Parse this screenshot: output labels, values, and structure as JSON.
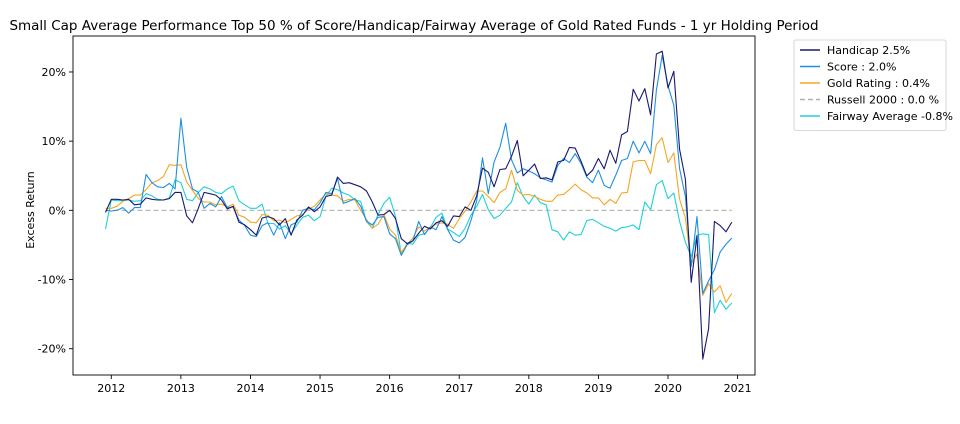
{
  "chart_data": {
    "type": "line",
    "title": "Small Cap Average Performance Top 50 % of Score/Handicap/Fairway Average of Gold Rated Funds - 1 yr Holding Period",
    "xlabel": "",
    "ylabel": "Excess Return",
    "xlim": [
      2011.45,
      2021.25
    ],
    "ylim": [
      -0.238,
      0.252
    ],
    "x_ticks": [
      2012,
      2013,
      2014,
      2015,
      2016,
      2017,
      2018,
      2019,
      2020,
      2021
    ],
    "x_tick_labels": [
      "2012",
      "2013",
      "2014",
      "2015",
      "2016",
      "2017",
      "2018",
      "2019",
      "2020",
      "2021"
    ],
    "y_ticks": [
      -0.2,
      -0.1,
      0.0,
      0.1,
      0.2
    ],
    "y_tick_labels": [
      "-20%",
      "-10%",
      "0%",
      "10%",
      "20%"
    ],
    "grid": false,
    "legend_position": "outside-right",
    "x_start": 2011.917,
    "x_step": 0.0833333,
    "series": [
      {
        "name": "Handicap 2.5%",
        "color": "#191970",
        "dash": "solid",
        "values": [
          -0.003,
          0.016,
          0.016,
          0.015,
          0.016,
          0.008,
          0.009,
          0.018,
          0.016,
          0.015,
          0.015,
          0.017,
          0.026,
          0.026,
          -0.008,
          -0.018,
          0.003,
          0.026,
          0.024,
          0.022,
          0.015,
          0.002,
          0.006,
          -0.017,
          -0.021,
          -0.028,
          -0.036,
          -0.011,
          -0.009,
          -0.012,
          -0.021,
          -0.012,
          -0.036,
          -0.014,
          -0.007,
          0.005,
          -0.002,
          0.005,
          0.02,
          0.022,
          0.048,
          0.039,
          0.04,
          0.037,
          0.034,
          0.028,
          0.012,
          -0.007,
          -0.006,
          0.0,
          -0.012,
          -0.041,
          -0.048,
          -0.044,
          -0.033,
          -0.023,
          -0.027,
          -0.018,
          -0.015,
          -0.023,
          -0.008,
          -0.009,
          0.005,
          0.0,
          0.021,
          0.061,
          0.055,
          0.034,
          0.059,
          0.06,
          0.078,
          0.101,
          0.05,
          0.058,
          0.067,
          0.046,
          0.047,
          0.044,
          0.07,
          0.072,
          0.091,
          0.09,
          0.071,
          0.05,
          0.058,
          0.075,
          0.06,
          0.087,
          0.068,
          0.109,
          0.114,
          0.175,
          0.158,
          0.176,
          0.138,
          0.226,
          0.23,
          0.177,
          0.201,
          0.088,
          0.045,
          -0.104,
          -0.037,
          -0.215,
          -0.171,
          -0.016,
          -0.022,
          -0.031,
          -0.017
        ]
      },
      {
        "name": "Score : 2.0%",
        "color": "#1f8fe0",
        "dash": "solid",
        "values": [
          0.0,
          -0.001,
          0.0,
          0.004,
          -0.004,
          0.004,
          0.004,
          0.052,
          0.04,
          0.034,
          0.033,
          0.039,
          0.031,
          0.133,
          0.062,
          0.031,
          0.026,
          0.003,
          0.01,
          0.005,
          0.02,
          0.004,
          0.005,
          -0.014,
          -0.022,
          -0.036,
          -0.038,
          -0.022,
          -0.018,
          -0.036,
          -0.018,
          -0.041,
          -0.021,
          -0.017,
          0.0,
          0.003,
          0.001,
          0.011,
          0.026,
          0.024,
          0.046,
          0.01,
          0.013,
          0.017,
          0.006,
          -0.016,
          -0.021,
          -0.01,
          -0.009,
          -0.034,
          -0.041,
          -0.065,
          -0.05,
          -0.044,
          -0.016,
          -0.035,
          -0.024,
          -0.028,
          -0.009,
          -0.028,
          -0.043,
          -0.047,
          -0.039,
          -0.015,
          0.014,
          0.076,
          0.024,
          0.07,
          0.091,
          0.126,
          0.073,
          0.054,
          0.06,
          0.057,
          0.053,
          0.047,
          0.044,
          0.041,
          0.065,
          0.075,
          0.069,
          0.082,
          0.068,
          0.048,
          0.04,
          0.058,
          0.036,
          0.032,
          0.051,
          0.072,
          0.075,
          0.1,
          0.083,
          0.1,
          0.082,
          0.174,
          0.224,
          0.18,
          0.152,
          0.06,
          0.02,
          -0.081,
          -0.009,
          -0.12,
          -0.102,
          -0.086,
          -0.06,
          -0.049,
          -0.04
        ]
      },
      {
        "name": "Gold Rating : 0.4%",
        "color": "#f5a623",
        "dash": "solid",
        "values": [
          0.003,
          0.003,
          0.006,
          0.013,
          0.017,
          0.022,
          0.022,
          0.03,
          0.04,
          0.043,
          0.049,
          0.066,
          0.065,
          0.066,
          0.041,
          0.029,
          0.017,
          0.012,
          0.012,
          0.008,
          0.009,
          0.005,
          0.009,
          -0.007,
          -0.01,
          -0.017,
          -0.018,
          -0.006,
          -0.007,
          -0.015,
          -0.014,
          -0.018,
          -0.013,
          -0.008,
          -0.006,
          0.002,
          0.006,
          0.015,
          0.024,
          0.022,
          0.021,
          0.013,
          0.016,
          0.015,
          0.0,
          -0.013,
          -0.026,
          -0.02,
          -0.006,
          -0.027,
          -0.036,
          -0.061,
          -0.049,
          -0.04,
          -0.024,
          -0.03,
          -0.024,
          -0.02,
          -0.018,
          -0.02,
          -0.026,
          -0.012,
          -0.001,
          0.012,
          0.028,
          0.028,
          0.02,
          0.011,
          0.026,
          0.031,
          0.058,
          0.029,
          0.022,
          0.023,
          0.02,
          0.016,
          0.013,
          0.013,
          0.022,
          0.023,
          0.03,
          0.038,
          0.03,
          0.025,
          0.018,
          0.018,
          0.008,
          0.016,
          0.01,
          0.025,
          0.026,
          0.07,
          0.072,
          0.072,
          0.053,
          0.095,
          0.105,
          0.069,
          0.083,
          0.016,
          -0.011,
          -0.078,
          -0.063,
          -0.123,
          -0.106,
          -0.118,
          -0.109,
          -0.133,
          -0.12
        ]
      },
      {
        "name": "Russell 2000 : 0.0 %",
        "color": "#b0b0b0",
        "dash": "dashed",
        "values": [
          0.0,
          0.0,
          0.0,
          0.0,
          0.0,
          0.0,
          0.0,
          0.0,
          0.0,
          0.0,
          0.0,
          0.0,
          0.0,
          0.0,
          0.0,
          0.0,
          0.0,
          0.0,
          0.0,
          0.0,
          0.0,
          0.0,
          0.0,
          0.0,
          0.0,
          0.0,
          0.0,
          0.0,
          0.0,
          0.0,
          0.0,
          0.0,
          0.0,
          0.0,
          0.0,
          0.0,
          0.0,
          0.0,
          0.0,
          0.0,
          0.0,
          0.0,
          0.0,
          0.0,
          0.0,
          0.0,
          0.0,
          0.0,
          0.0,
          0.0,
          0.0,
          0.0,
          0.0,
          0.0,
          0.0,
          0.0,
          0.0,
          0.0,
          0.0,
          0.0,
          0.0,
          0.0,
          0.0,
          0.0,
          0.0,
          0.0,
          0.0,
          0.0,
          0.0,
          0.0,
          0.0,
          0.0,
          0.0,
          0.0,
          0.0,
          0.0,
          0.0,
          0.0,
          0.0,
          0.0,
          0.0,
          0.0,
          0.0,
          0.0,
          0.0,
          0.0,
          0.0,
          0.0,
          0.0,
          0.0,
          0.0,
          0.0,
          0.0,
          0.0,
          0.0,
          0.0,
          0.0,
          0.0,
          0.0,
          0.0,
          0.0,
          0.0,
          0.0,
          0.0,
          0.0,
          0.0,
          0.0,
          0.0,
          0.0
        ]
      },
      {
        "name": "Fairway Average -0.8%",
        "color": "#1fd0d8",
        "dash": "solid",
        "values": [
          -0.027,
          0.015,
          0.014,
          0.014,
          0.015,
          0.013,
          0.014,
          0.024,
          0.021,
          0.016,
          0.015,
          0.018,
          0.044,
          0.04,
          0.016,
          0.014,
          0.026,
          0.034,
          0.031,
          0.026,
          0.024,
          0.031,
          0.035,
          0.014,
          0.008,
          0.003,
          0.003,
          0.009,
          -0.019,
          -0.019,
          -0.027,
          -0.022,
          -0.034,
          -0.021,
          -0.01,
          -0.007,
          -0.015,
          -0.009,
          0.02,
          0.032,
          0.03,
          0.025,
          0.022,
          0.015,
          0.013,
          -0.016,
          -0.026,
          -0.006,
          0.01,
          0.019,
          -0.009,
          -0.064,
          -0.047,
          -0.049,
          -0.036,
          -0.034,
          -0.025,
          -0.01,
          -0.004,
          -0.027,
          -0.032,
          -0.038,
          -0.026,
          -0.007,
          0.006,
          0.023,
          0.001,
          -0.012,
          -0.007,
          0.003,
          0.012,
          0.04,
          0.02,
          0.009,
          0.022,
          0.011,
          0.008,
          -0.028,
          -0.031,
          -0.043,
          -0.031,
          -0.036,
          -0.035,
          -0.015,
          -0.013,
          -0.018,
          -0.023,
          -0.026,
          -0.03,
          -0.025,
          -0.024,
          -0.021,
          -0.028,
          0.012,
          0.001,
          0.037,
          0.043,
          0.017,
          0.025,
          -0.016,
          -0.046,
          -0.067,
          -0.036,
          -0.034,
          -0.035,
          -0.148,
          -0.13,
          -0.143,
          -0.134
        ]
      }
    ]
  }
}
